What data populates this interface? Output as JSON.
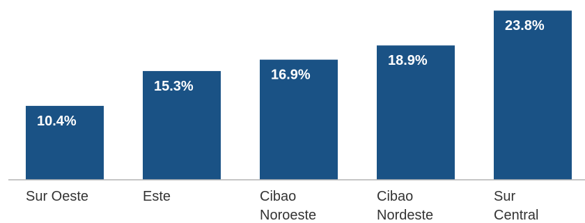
{
  "chart_data": {
    "type": "bar",
    "title": "",
    "xlabel": "",
    "ylabel": "",
    "ylim": [
      0,
      24
    ],
    "grid": false,
    "legend": "none",
    "categories": [
      "Sur Oeste",
      "Este",
      "Cibao Noroeste",
      "Cibao Nordeste",
      "Sur Central"
    ],
    "category_lines": [
      [
        "Sur Oeste"
      ],
      [
        "Este"
      ],
      [
        "Cibao",
        "Noroeste"
      ],
      [
        "Cibao",
        "Nordeste"
      ],
      [
        "Sur",
        "Central"
      ]
    ],
    "values": [
      10.4,
      15.3,
      16.9,
      18.9,
      23.8
    ],
    "value_labels": [
      "10.4%",
      "15.3%",
      "16.9%",
      "18.9%",
      "23.8%"
    ],
    "bar_color": "#1a5285",
    "axis_color": "#b3b3b3"
  }
}
